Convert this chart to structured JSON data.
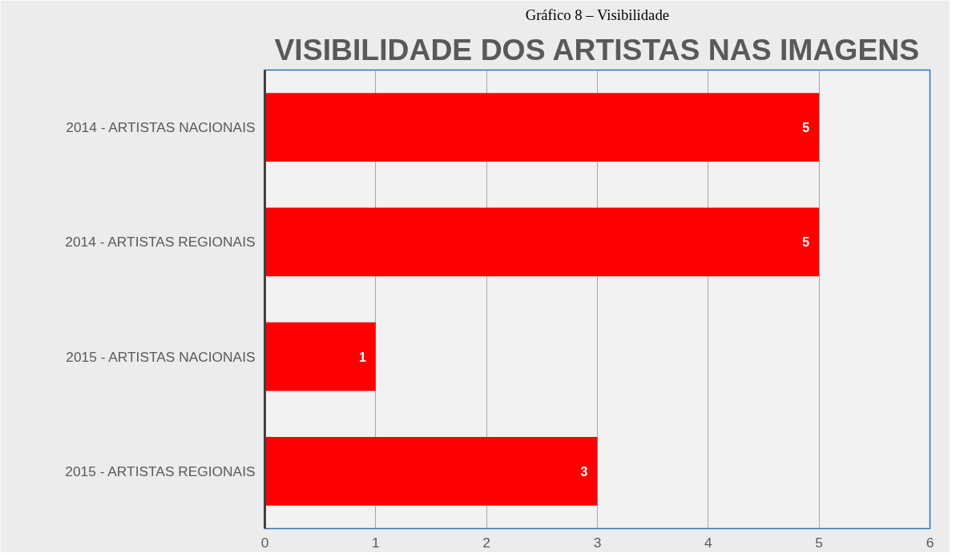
{
  "chart_data": {
    "type": "bar",
    "orientation": "horizontal",
    "title": "VISIBILIDADE DOS ARTISTAS NAS IMAGENS",
    "annotations": [
      "Gráfico 8 – Visibilidade"
    ],
    "categories": [
      "2014 - ARTISTAS NACIONAIS",
      "2014 - ARTISTAS REGIONAIS",
      "2015 - ARTISTAS NACIONAIS",
      "2015 - ARTISTAS REGIONAIS"
    ],
    "series": [
      {
        "color": "#ff0000",
        "values": [
          5,
          5,
          1,
          3
        ]
      }
    ],
    "xlim": [
      0,
      6
    ],
    "xticks": [
      0,
      1,
      2,
      3,
      4,
      5,
      6
    ],
    "grid": "x",
    "data_labels": true
  }
}
